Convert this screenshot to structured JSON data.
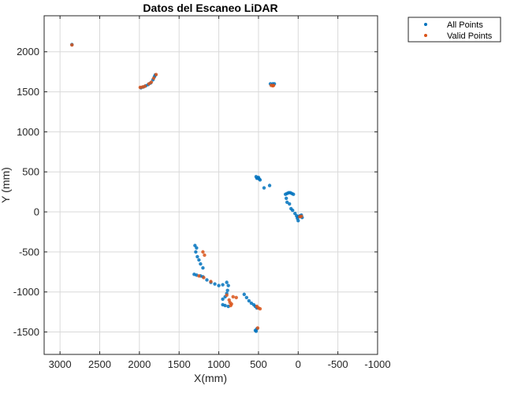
{
  "chart_data": {
    "type": "scatter",
    "title": "Datos del Escaneo LiDAR",
    "xlabel": "X(mm)",
    "ylabel": "Y (mm)",
    "xlim": [
      -1000,
      3200
    ],
    "ylim": [
      -1780,
      2450
    ],
    "x_reversed": true,
    "grid": true,
    "legend_position": "outside-top-right",
    "x_ticks": [
      3000,
      2500,
      2000,
      1500,
      1000,
      500,
      0,
      -500,
      -1000
    ],
    "y_ticks": [
      -1500,
      -1000,
      -500,
      0,
      500,
      1000,
      1500,
      2000
    ],
    "series": [
      {
        "name": "All Points",
        "color": "#0072BD",
        "points": [
          [
            2850,
            2090
          ],
          [
            1980,
            1550
          ],
          [
            1950,
            1560
          ],
          [
            1920,
            1575
          ],
          [
            1890,
            1590
          ],
          [
            1860,
            1610
          ],
          [
            1830,
            1650
          ],
          [
            1810,
            1690
          ],
          [
            1800,
            1710
          ],
          [
            350,
            1600
          ],
          [
            320,
            1600
          ],
          [
            300,
            1600
          ],
          [
            530,
            440
          ],
          [
            500,
            430
          ],
          [
            520,
            420
          ],
          [
            510,
            420
          ],
          [
            490,
            410
          ],
          [
            480,
            400
          ],
          [
            430,
            300
          ],
          [
            360,
            330
          ],
          [
            160,
            220
          ],
          [
            140,
            230
          ],
          [
            120,
            240
          ],
          [
            100,
            240
          ],
          [
            80,
            230
          ],
          [
            60,
            220
          ],
          [
            150,
            170
          ],
          [
            140,
            120
          ],
          [
            110,
            100
          ],
          [
            90,
            40
          ],
          [
            70,
            20
          ],
          [
            40,
            -20
          ],
          [
            20,
            -50
          ],
          [
            0,
            -60
          ],
          [
            -20,
            -50
          ],
          [
            -40,
            -40
          ],
          [
            -50,
            -70
          ],
          [
            10,
            -80
          ],
          [
            0,
            -110
          ],
          [
            1300,
            -420
          ],
          [
            1280,
            -450
          ],
          [
            1290,
            -500
          ],
          [
            1270,
            -560
          ],
          [
            1250,
            -600
          ],
          [
            1230,
            -650
          ],
          [
            1200,
            -700
          ],
          [
            1310,
            -780
          ],
          [
            1280,
            -790
          ],
          [
            1230,
            -800
          ],
          [
            1200,
            -810
          ],
          [
            1150,
            -850
          ],
          [
            1100,
            -880
          ],
          [
            1050,
            -900
          ],
          [
            1000,
            -920
          ],
          [
            950,
            -910
          ],
          [
            900,
            -880
          ],
          [
            880,
            -920
          ],
          [
            890,
            -980
          ],
          [
            900,
            -1020
          ],
          [
            920,
            -1060
          ],
          [
            950,
            -1090
          ],
          [
            950,
            -1160
          ],
          [
            920,
            -1170
          ],
          [
            880,
            -1180
          ],
          [
            680,
            -1030
          ],
          [
            650,
            -1070
          ],
          [
            620,
            -1110
          ],
          [
            590,
            -1140
          ],
          [
            560,
            -1160
          ],
          [
            540,
            -1180
          ],
          [
            520,
            -1200
          ],
          [
            520,
            -1460
          ],
          [
            540,
            -1480
          ],
          [
            530,
            -1490
          ]
        ]
      },
      {
        "name": "Valid Points",
        "color": "#D95319",
        "points": [
          [
            2850,
            2085
          ],
          [
            1990,
            1555
          ],
          [
            1960,
            1560
          ],
          [
            1930,
            1570
          ],
          [
            1880,
            1600
          ],
          [
            1850,
            1620
          ],
          [
            1820,
            1670
          ],
          [
            1790,
            1715
          ],
          [
            340,
            1580
          ],
          [
            320,
            1575
          ],
          [
            310,
            1580
          ],
          [
            -20,
            -60
          ],
          [
            -40,
            -55
          ],
          [
            1200,
            -500
          ],
          [
            1180,
            -540
          ],
          [
            1250,
            -800
          ],
          [
            1190,
            -820
          ],
          [
            1100,
            -870
          ],
          [
            900,
            -1040
          ],
          [
            870,
            -1100
          ],
          [
            860,
            -1130
          ],
          [
            840,
            -1150
          ],
          [
            850,
            -1170
          ],
          [
            820,
            -1060
          ],
          [
            780,
            -1070
          ],
          [
            520,
            -1180
          ],
          [
            500,
            -1200
          ],
          [
            480,
            -1210
          ],
          [
            510,
            -1450
          ]
        ]
      }
    ]
  }
}
